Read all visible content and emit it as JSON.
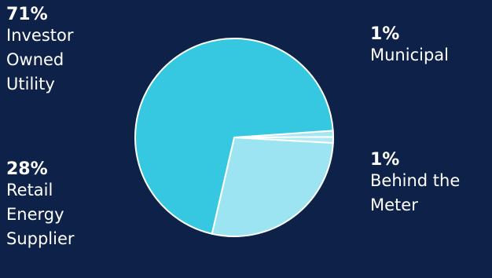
{
  "chart_data": {
    "type": "pie",
    "title": "",
    "slices": [
      {
        "label": "Investor Owned Utility",
        "percent_label": "71%",
        "value": 71,
        "color": "#35c8e0"
      },
      {
        "label": "Retail Energy Supplier",
        "percent_label": "28%",
        "value": 28,
        "color": "#9de4f2"
      },
      {
        "label": "Municipal",
        "percent_label": "1%",
        "value": 1,
        "color": "#a6e6f3"
      },
      {
        "label": "Behind the Meter",
        "percent_label": "1%",
        "value": 1,
        "color": "#b0e9f5"
      }
    ]
  },
  "labels": [
    {
      "pct": "71%",
      "name": "Investor\nOwned\nUtility"
    },
    {
      "pct": "28%",
      "name": "Retail\nEnergy\nSupplier"
    },
    {
      "pct": "1%",
      "name": "Municipal"
    },
    {
      "pct": "1%",
      "name": "Behind the\nMeter"
    }
  ],
  "colors": {
    "background": "#0e2149",
    "text": "#ffffff",
    "slice_border": "#ffffff"
  }
}
